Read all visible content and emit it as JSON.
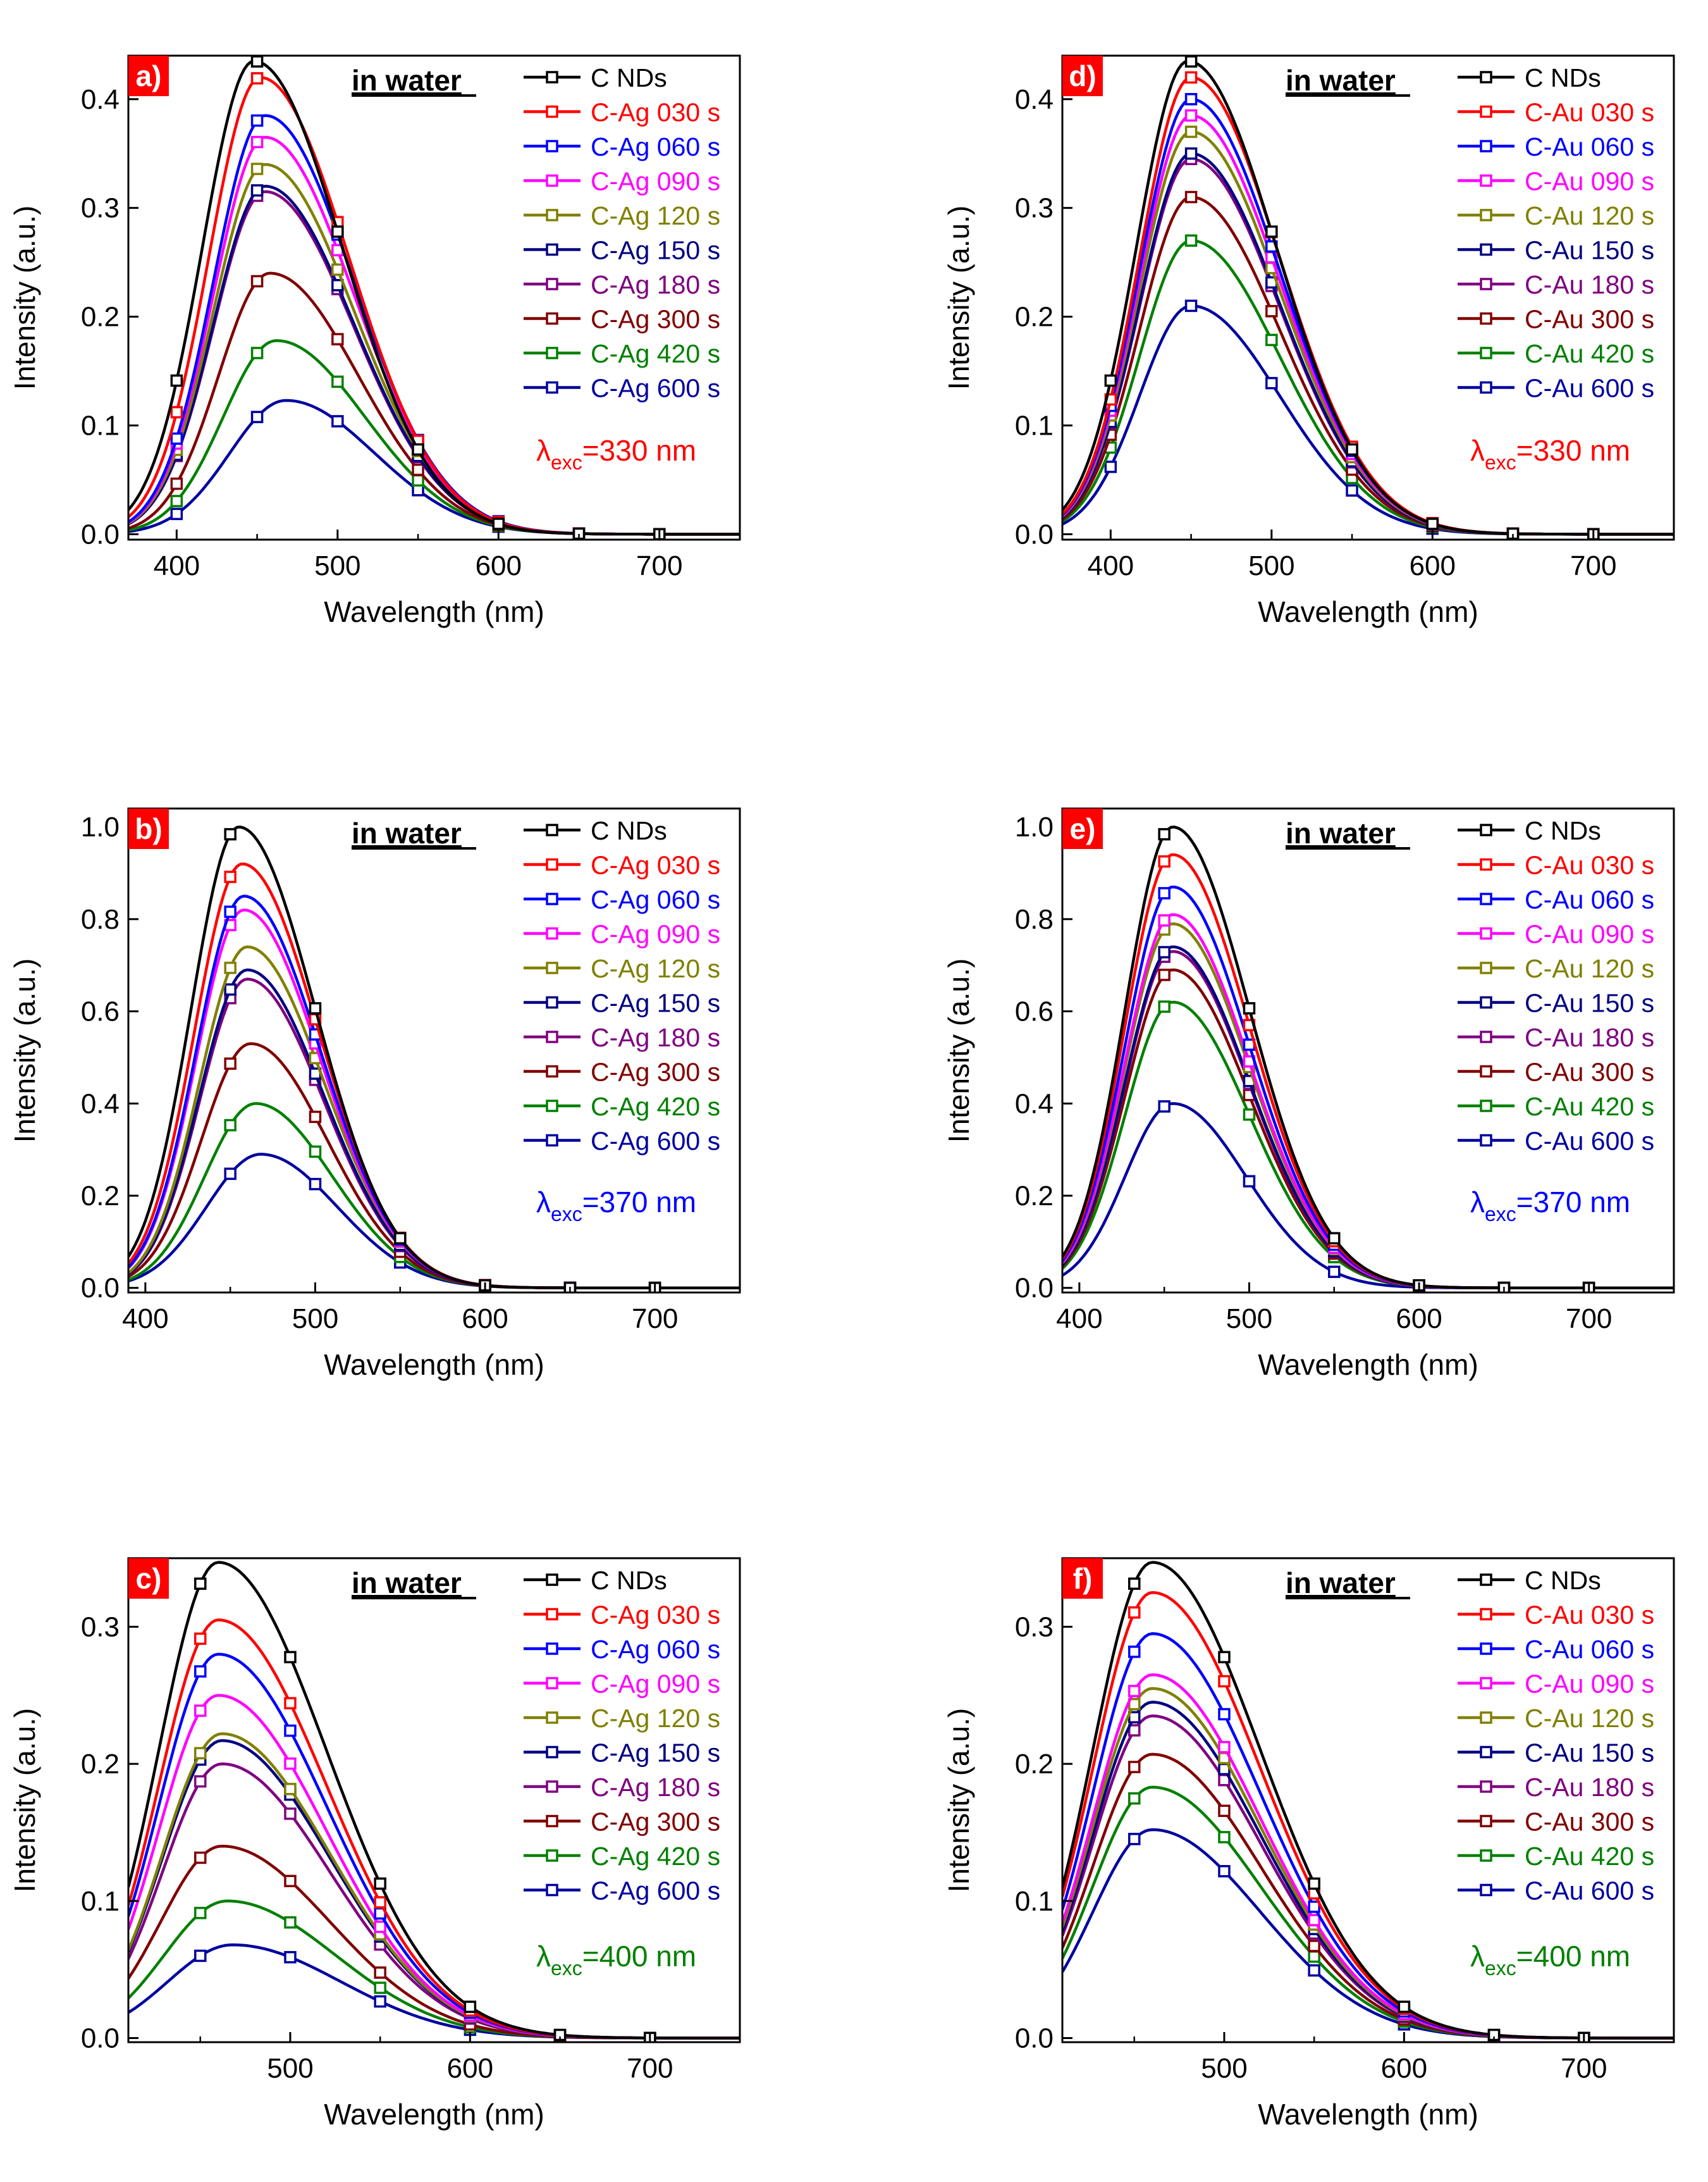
{
  "colors": {
    "C NDs": "#000000",
    "030 s": "#ff0000",
    "060 s": "#0000ff",
    "090 s": "#ff00ff",
    "120 s": "#808000",
    "150 s": "#000080",
    "180 s": "#800080",
    "300 s": "#800000",
    "420 s": "#008000",
    "600 s": "#0000a0"
  },
  "label_bg": "#ff0000",
  "chart_data": [
    {
      "panel": "a)",
      "type": "line",
      "note": "in water",
      "excitation": {
        "lambda": "λ",
        "sub": "exc",
        "text": "=330 nm",
        "color": "#ff0000"
      },
      "xlabel": "Wavelength (nm)",
      "ylabel": "Intensity (a.u.)",
      "xlim": [
        370,
        750
      ],
      "ylim": [
        -0.005,
        0.44
      ],
      "xticks": [
        400,
        500,
        600,
        700
      ],
      "yticks": [
        0.0,
        0.1,
        0.2,
        0.3,
        0.4
      ],
      "ytick_labels": [
        "0.0",
        "0.1",
        "0.2",
        "0.3",
        "0.4"
      ],
      "series": [
        {
          "name": "C NDs",
          "key": "C NDs",
          "peak_x": 448,
          "peak_y": 0.435,
          "s_left": 32,
          "s_right": 55
        },
        {
          "name": "C-Ag 030 s",
          "key": "030 s",
          "peak_x": 452,
          "peak_y": 0.42,
          "s_left": 32,
          "s_right": 55
        },
        {
          "name": "C-Ag 060 s",
          "key": "060 s",
          "peak_x": 455,
          "peak_y": 0.385,
          "s_left": 32,
          "s_right": 55
        },
        {
          "name": "C-Ag 090 s",
          "key": "090 s",
          "peak_x": 455,
          "peak_y": 0.365,
          "s_left": 32,
          "s_right": 55
        },
        {
          "name": "C-Ag 120 s",
          "key": "120 s",
          "peak_x": 455,
          "peak_y": 0.34,
          "s_left": 32,
          "s_right": 55
        },
        {
          "name": "C-Ag 150 s",
          "key": "150 s",
          "peak_x": 455,
          "peak_y": 0.32,
          "s_left": 32,
          "s_right": 55
        },
        {
          "name": "C-Ag 180 s",
          "key": "180 s",
          "peak_x": 455,
          "peak_y": 0.315,
          "s_left": 32,
          "s_right": 55
        },
        {
          "name": "C-Ag 300 s",
          "key": "300 s",
          "peak_x": 458,
          "peak_y": 0.24,
          "s_left": 32,
          "s_right": 55
        },
        {
          "name": "C-Ag 420 s",
          "key": "420 s",
          "peak_x": 462,
          "peak_y": 0.178,
          "s_left": 33,
          "s_right": 55
        },
        {
          "name": "C-Ag 600 s",
          "key": "600 s",
          "peak_x": 468,
          "peak_y": 0.123,
          "s_left": 35,
          "s_right": 55
        }
      ]
    },
    {
      "panel": "b)",
      "type": "line",
      "note": "in water",
      "excitation": {
        "lambda": "λ",
        "sub": "exc",
        "text": "=370 nm",
        "color": "#0000ff"
      },
      "xlabel": "Wavelength (nm)",
      "ylabel": "Intensity (a.u.)",
      "xlim": [
        390,
        750
      ],
      "ylim": [
        -0.01,
        1.04
      ],
      "xticks": [
        400,
        500,
        600,
        700
      ],
      "yticks": [
        0.0,
        0.2,
        0.4,
        0.6,
        0.8,
        1.0
      ],
      "ytick_labels": [
        "0.0",
        "0.2",
        "0.4",
        "0.6",
        "0.8",
        "1.0"
      ],
      "series": [
        {
          "name": "C NDs",
          "key": "C NDs",
          "peak_x": 455,
          "peak_y": 1.0,
          "s_left": 28,
          "s_right": 45
        },
        {
          "name": "C-Ag 030 s",
          "key": "030 s",
          "peak_x": 457,
          "peak_y": 0.92,
          "s_left": 28,
          "s_right": 45
        },
        {
          "name": "C-Ag 060 s",
          "key": "060 s",
          "peak_x": 458,
          "peak_y": 0.85,
          "s_left": 28,
          "s_right": 45
        },
        {
          "name": "C-Ag 090 s",
          "key": "090 s",
          "peak_x": 458,
          "peak_y": 0.82,
          "s_left": 28,
          "s_right": 45
        },
        {
          "name": "C-Ag 120 s",
          "key": "120 s",
          "peak_x": 460,
          "peak_y": 0.74,
          "s_left": 28,
          "s_right": 45
        },
        {
          "name": "C-Ag 150 s",
          "key": "150 s",
          "peak_x": 460,
          "peak_y": 0.69,
          "s_left": 28,
          "s_right": 45
        },
        {
          "name": "C-Ag 180 s",
          "key": "180 s",
          "peak_x": 460,
          "peak_y": 0.67,
          "s_left": 28,
          "s_right": 45
        },
        {
          "name": "C-Ag 300 s",
          "key": "300 s",
          "peak_x": 462,
          "peak_y": 0.53,
          "s_left": 29,
          "s_right": 45
        },
        {
          "name": "C-Ag 420 s",
          "key": "420 s",
          "peak_x": 465,
          "peak_y": 0.4,
          "s_left": 30,
          "s_right": 45
        },
        {
          "name": "C-Ag 600 s",
          "key": "600 s",
          "peak_x": 468,
          "peak_y": 0.29,
          "s_left": 32,
          "s_right": 45
        }
      ]
    },
    {
      "panel": "c)",
      "type": "line",
      "note": "in water",
      "excitation": {
        "lambda": "λ",
        "sub": "exc",
        "text": "=400 nm",
        "color": "#008000"
      },
      "xlabel": "Wavelength (nm)",
      "ylabel": "Intensity (a.u.)",
      "xlim": [
        410,
        750
      ],
      "ylim": [
        -0.003,
        0.35
      ],
      "xticks": [
        500,
        600,
        700
      ],
      "yticks": [
        0.0,
        0.1,
        0.2,
        0.3
      ],
      "ytick_labels": [
        "0.0",
        "0.1",
        "0.2",
        "0.3"
      ],
      "series": [
        {
          "name": "C NDs",
          "key": "C NDs",
          "peak_x": 460,
          "peak_y": 0.347,
          "s_left": 33,
          "s_right": 60
        },
        {
          "name": "C-Ag 030 s",
          "key": "030 s",
          "peak_x": 460,
          "peak_y": 0.305,
          "s_left": 33,
          "s_right": 60
        },
        {
          "name": "C-Ag 060 s",
          "key": "060 s",
          "peak_x": 460,
          "peak_y": 0.28,
          "s_left": 33,
          "s_right": 60
        },
        {
          "name": "C-Ag 090 s",
          "key": "090 s",
          "peak_x": 460,
          "peak_y": 0.25,
          "s_left": 33,
          "s_right": 60
        },
        {
          "name": "C-Ag 120 s",
          "key": "120 s",
          "peak_x": 462,
          "peak_y": 0.222,
          "s_left": 33,
          "s_right": 60
        },
        {
          "name": "C-Ag 150 s",
          "key": "150 s",
          "peak_x": 462,
          "peak_y": 0.217,
          "s_left": 33,
          "s_right": 60
        },
        {
          "name": "C-Ag 180 s",
          "key": "180 s",
          "peak_x": 462,
          "peak_y": 0.2,
          "s_left": 33,
          "s_right": 60
        },
        {
          "name": "C-Ag 300 s",
          "key": "300 s",
          "peak_x": 462,
          "peak_y": 0.14,
          "s_left": 34,
          "s_right": 60
        },
        {
          "name": "C-Ag 420 s",
          "key": "420 s",
          "peak_x": 465,
          "peak_y": 0.1,
          "s_left": 35,
          "s_right": 60
        },
        {
          "name": "C-Ag 600 s",
          "key": "600 s",
          "peak_x": 468,
          "peak_y": 0.068,
          "s_left": 36,
          "s_right": 60
        }
      ]
    },
    {
      "panel": "d)",
      "type": "line",
      "note": "in water",
      "excitation": {
        "lambda": "λ",
        "sub": "exc",
        "text": "=330 nm",
        "color": "#ff0000"
      },
      "xlabel": "Wavelength (nm)",
      "ylabel": "Intensity (a.u.)",
      "xlim": [
        370,
        750
      ],
      "ylim": [
        -0.005,
        0.44
      ],
      "xticks": [
        400,
        500,
        600,
        700
      ],
      "yticks": [
        0.0,
        0.1,
        0.2,
        0.3,
        0.4
      ],
      "ytick_labels": [
        "0.0",
        "0.1",
        "0.2",
        "0.3",
        "0.4"
      ],
      "series": [
        {
          "name": "C NDs",
          "key": "C NDs",
          "peak_x": 448,
          "peak_y": 0.435,
          "s_left": 32,
          "s_right": 55
        },
        {
          "name": "C-Au 030 s",
          "key": "030 s",
          "peak_x": 450,
          "peak_y": 0.42,
          "s_left": 32,
          "s_right": 55
        },
        {
          "name": "C-Au 060 s",
          "key": "060 s",
          "peak_x": 450,
          "peak_y": 0.4,
          "s_left": 32,
          "s_right": 55
        },
        {
          "name": "C-Au 090 s",
          "key": "090 s",
          "peak_x": 450,
          "peak_y": 0.385,
          "s_left": 32,
          "s_right": 55
        },
        {
          "name": "C-Au 120 s",
          "key": "120 s",
          "peak_x": 450,
          "peak_y": 0.37,
          "s_left": 32,
          "s_right": 55
        },
        {
          "name": "C-Au 150 s",
          "key": "150 s",
          "peak_x": 450,
          "peak_y": 0.35,
          "s_left": 32,
          "s_right": 55
        },
        {
          "name": "C-Au 180 s",
          "key": "180 s",
          "peak_x": 450,
          "peak_y": 0.345,
          "s_left": 32,
          "s_right": 55
        },
        {
          "name": "C-Au 300 s",
          "key": "300 s",
          "peak_x": 450,
          "peak_y": 0.31,
          "s_left": 32,
          "s_right": 55
        },
        {
          "name": "C-Au 420 s",
          "key": "420 s",
          "peak_x": 450,
          "peak_y": 0.27,
          "s_left": 32,
          "s_right": 55
        },
        {
          "name": "C-Au 600 s",
          "key": "600 s",
          "peak_x": 450,
          "peak_y": 0.21,
          "s_left": 32,
          "s_right": 55
        }
      ]
    },
    {
      "panel": "e)",
      "type": "line",
      "note": "in water",
      "excitation": {
        "lambda": "λ",
        "sub": "exc",
        "text": "=370 nm",
        "color": "#0000ff"
      },
      "xlabel": "Wavelength (nm)",
      "ylabel": "Intensity (a.u.)",
      "xlim": [
        390,
        750
      ],
      "ylim": [
        -0.01,
        1.04
      ],
      "xticks": [
        400,
        500,
        600,
        700
      ],
      "yticks": [
        0.0,
        0.2,
        0.4,
        0.6,
        0.8,
        1.0
      ],
      "ytick_labels": [
        "0.0",
        "0.2",
        "0.4",
        "0.6",
        "0.8",
        "1.0"
      ],
      "series": [
        {
          "name": "C NDs",
          "key": "C NDs",
          "peak_x": 455,
          "peak_y": 1.0,
          "s_left": 28,
          "s_right": 45
        },
        {
          "name": "C-Au 030 s",
          "key": "030 s",
          "peak_x": 455,
          "peak_y": 0.94,
          "s_left": 28,
          "s_right": 45
        },
        {
          "name": "C-Au 060 s",
          "key": "060 s",
          "peak_x": 455,
          "peak_y": 0.87,
          "s_left": 28,
          "s_right": 45
        },
        {
          "name": "C-Au 090 s",
          "key": "090 s",
          "peak_x": 455,
          "peak_y": 0.81,
          "s_left": 28,
          "s_right": 45
        },
        {
          "name": "C-Au 120 s",
          "key": "120 s",
          "peak_x": 455,
          "peak_y": 0.79,
          "s_left": 28,
          "s_right": 45
        },
        {
          "name": "C-Au 150 s",
          "key": "150 s",
          "peak_x": 455,
          "peak_y": 0.74,
          "s_left": 28,
          "s_right": 45
        },
        {
          "name": "C-Au 180 s",
          "key": "180 s",
          "peak_x": 455,
          "peak_y": 0.73,
          "s_left": 28,
          "s_right": 45
        },
        {
          "name": "C-Au 300 s",
          "key": "300 s",
          "peak_x": 455,
          "peak_y": 0.69,
          "s_left": 28,
          "s_right": 45
        },
        {
          "name": "C-Au 420 s",
          "key": "420 s",
          "peak_x": 455,
          "peak_y": 0.62,
          "s_left": 28,
          "s_right": 45
        },
        {
          "name": "C-Au 600 s",
          "key": "600 s",
          "peak_x": 455,
          "peak_y": 0.4,
          "s_left": 28,
          "s_right": 43
        }
      ]
    },
    {
      "panel": "f)",
      "type": "line",
      "note": "in water",
      "excitation": {
        "lambda": "λ",
        "sub": "exc",
        "text": "=400 nm",
        "color": "#008000"
      },
      "xlabel": "Wavelength (nm)",
      "ylabel": "Intensity (a.u.)",
      "xlim": [
        410,
        750
      ],
      "ylim": [
        -0.003,
        0.35
      ],
      "xticks": [
        500,
        600,
        700
      ],
      "yticks": [
        0.0,
        0.1,
        0.2,
        0.3
      ],
      "ytick_labels": [
        "0.0",
        "0.1",
        "0.2",
        "0.3"
      ],
      "series": [
        {
          "name": "C NDs",
          "key": "C NDs",
          "peak_x": 460,
          "peak_y": 0.347,
          "s_left": 33,
          "s_right": 60
        },
        {
          "name": "C-Au 030 s",
          "key": "030 s",
          "peak_x": 460,
          "peak_y": 0.325,
          "s_left": 33,
          "s_right": 60
        },
        {
          "name": "C-Au 060 s",
          "key": "060 s",
          "peak_x": 460,
          "peak_y": 0.295,
          "s_left": 33,
          "s_right": 60
        },
        {
          "name": "C-Au 090 s",
          "key": "090 s",
          "peak_x": 460,
          "peak_y": 0.265,
          "s_left": 33,
          "s_right": 60
        },
        {
          "name": "C-Au 120 s",
          "key": "120 s",
          "peak_x": 460,
          "peak_y": 0.255,
          "s_left": 33,
          "s_right": 60
        },
        {
          "name": "C-Au 150 s",
          "key": "150 s",
          "peak_x": 460,
          "peak_y": 0.245,
          "s_left": 33,
          "s_right": 60
        },
        {
          "name": "C-Au 180 s",
          "key": "180 s",
          "peak_x": 460,
          "peak_y": 0.235,
          "s_left": 33,
          "s_right": 60
        },
        {
          "name": "C-Au 300 s",
          "key": "300 s",
          "peak_x": 460,
          "peak_y": 0.207,
          "s_left": 33,
          "s_right": 60
        },
        {
          "name": "C-Au 420 s",
          "key": "420 s",
          "peak_x": 460,
          "peak_y": 0.183,
          "s_left": 33,
          "s_right": 60
        },
        {
          "name": "C-Au 600 s",
          "key": "600 s",
          "peak_x": 460,
          "peak_y": 0.152,
          "s_left": 33,
          "s_right": 60
        }
      ]
    }
  ]
}
